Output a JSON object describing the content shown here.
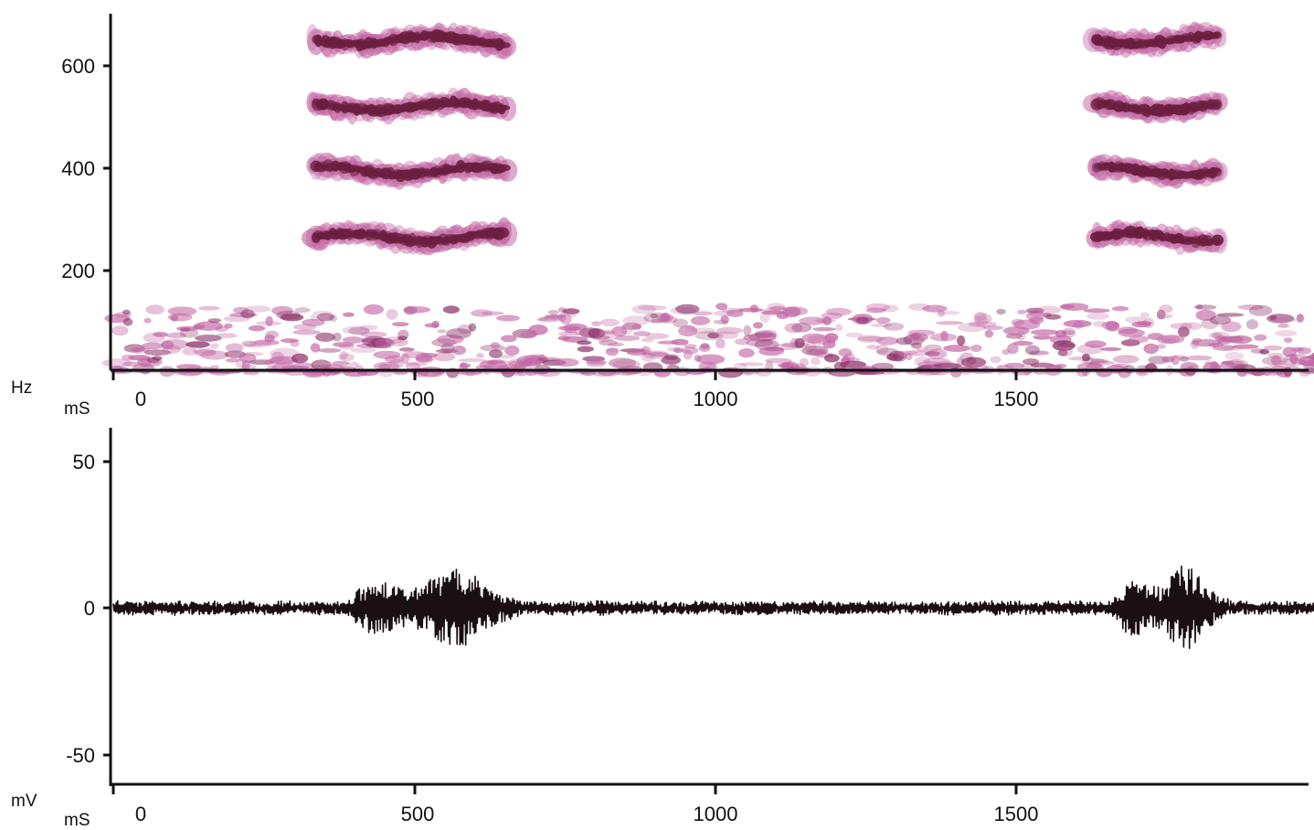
{
  "chart_data": [
    {
      "type": "heatmap",
      "kind": "spectrogram",
      "ylabel": "Hz",
      "xlabel": "mS",
      "xlim": [
        0,
        2000
      ],
      "ylim": [
        0,
        700
      ],
      "xticks": [
        0,
        500,
        1000,
        1500
      ],
      "yticks": [
        200,
        400,
        600
      ],
      "x_tick_labels": [
        "0",
        "500",
        "1000",
        "1500"
      ],
      "y_tick_labels": [
        "200",
        "400",
        "600"
      ],
      "color": "#6b1f3f",
      "harmonic_bursts": [
        {
          "x_start": 330,
          "x_end": 655,
          "harmonics_hz": [
            265,
            395,
            520,
            650
          ]
        },
        {
          "x_start": 1625,
          "x_end": 1840,
          "harmonics_hz": [
            265,
            395,
            520,
            650
          ]
        }
      ],
      "low_frequency_noise_hz": [
        0,
        130
      ]
    },
    {
      "type": "line",
      "kind": "waveform",
      "ylabel": "mV",
      "xlabel": "mS",
      "xlim": [
        0,
        2000
      ],
      "ylim": [
        -60,
        60
      ],
      "xticks": [
        0,
        500,
        1000,
        1500
      ],
      "yticks": [
        -50,
        0,
        50
      ],
      "x_tick_labels": [
        "0",
        "500",
        "1000",
        "1500"
      ],
      "y_tick_labels": [
        "-50",
        "0",
        "50"
      ],
      "baseline_noise_mv": 2,
      "bursts": [
        {
          "x_start": 380,
          "x_end": 690,
          "peak_amplitude_mv": 14
        },
        {
          "x_start": 1650,
          "x_end": 1860,
          "peak_amplitude_mv": 15
        }
      ],
      "color": "#1a0f12"
    }
  ]
}
